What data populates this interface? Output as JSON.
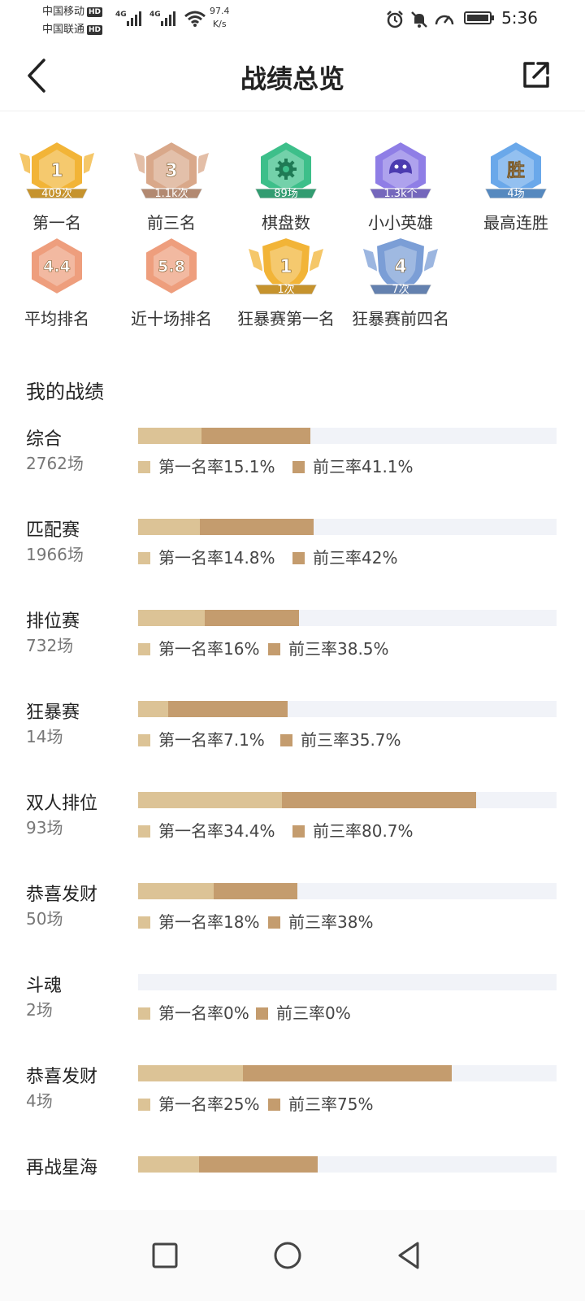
{
  "status": {
    "carrier1": "中国移动",
    "carrier2": "中国联通",
    "hd": "HD",
    "net": "4G",
    "speed_value": "97.4",
    "speed_unit": "K/s",
    "time": "5:36"
  },
  "nav": {
    "title": "战绩总览"
  },
  "badges": [
    {
      "value": "1",
      "sub": "409次",
      "caption": "第一名",
      "icon": "gold-winged-hex-badge",
      "color": "#f2b437"
    },
    {
      "value": "3",
      "sub": "1.1k次",
      "caption": "前三名",
      "icon": "bronze-winged-hex-badge",
      "color": "#d9a88a"
    },
    {
      "value": "",
      "sub": "89场",
      "caption": "棋盘数",
      "icon": "green-gear-hex-badge",
      "color": "#3dbf8a"
    },
    {
      "value": "",
      "sub": "1.3k个",
      "caption": "小小英雄",
      "icon": "purple-creature-hex-badge",
      "color": "#8f7ee6"
    },
    {
      "value": "胜",
      "sub": "4场",
      "caption": "最高连胜",
      "icon": "blue-hex-badge",
      "color": "#6aa8ea"
    },
    {
      "value": "4.4",
      "sub": "",
      "caption": "平均排名",
      "icon": "peach-hex-badge",
      "color": "#ee9e7d"
    },
    {
      "value": "5.8",
      "sub": "",
      "caption": "近十场排名",
      "icon": "peach-hex-badge",
      "color": "#ee9e7d"
    },
    {
      "value": "1",
      "sub": "1次",
      "caption": "狂暴赛第一名",
      "icon": "gold-shield-badge",
      "color": "#f2b437"
    },
    {
      "value": "4",
      "sub": "7次",
      "caption": "狂暴赛前四名",
      "icon": "blue-shield-badge",
      "color": "#7b9ed6"
    }
  ],
  "section": {
    "title": "我的战绩"
  },
  "rows": [
    {
      "name": "综合",
      "count": "2762场",
      "first_label": "第一名率15.1%",
      "top3_label": "前三率41.1%",
      "first": 15.1,
      "top3": 41.1
    },
    {
      "name": "匹配赛",
      "count": "1966场",
      "first_label": "第一名率14.8%",
      "top3_label": "前三率42%",
      "first": 14.8,
      "top3": 42
    },
    {
      "name": "排位赛",
      "count": "732场",
      "first_label": "第一名率16%",
      "top3_label": "前三率38.5%",
      "first": 16,
      "top3": 38.5
    },
    {
      "name": "狂暴赛",
      "count": "14场",
      "first_label": "第一名率7.1%",
      "top3_label": "前三率35.7%",
      "first": 7.1,
      "top3": 35.7
    },
    {
      "name": "双人排位",
      "count": "93场",
      "first_label": "第一名率34.4%",
      "top3_label": "前三率80.7%",
      "first": 34.4,
      "top3": 80.7
    },
    {
      "name": "恭喜发财",
      "count": "50场",
      "first_label": "第一名率18%",
      "top3_label": "前三率38%",
      "first": 18,
      "top3": 38
    },
    {
      "name": "斗魂",
      "count": "2场",
      "first_label": "第一名率0%",
      "top3_label": "前三率0%",
      "first": 0,
      "top3": 0
    },
    {
      "name": "恭喜发财",
      "count": "4场",
      "first_label": "第一名率25%",
      "top3_label": "前三率75%",
      "first": 25,
      "top3": 75
    },
    {
      "name": "再战星海",
      "count": "",
      "first_label": "",
      "top3_label": "",
      "first": 14.5,
      "top3": 43
    }
  ],
  "colors": {
    "first_rate": "#dcc396",
    "top3_rate": "#c49c6e",
    "track": "#f1f3f8"
  }
}
